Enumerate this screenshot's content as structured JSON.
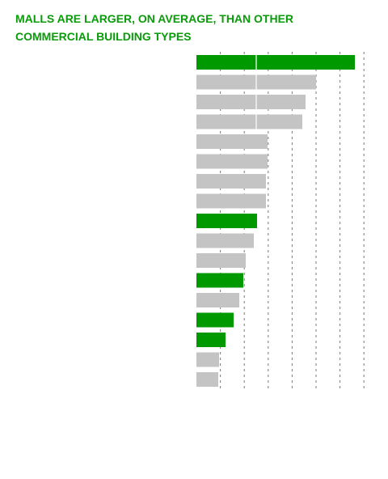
{
  "title": "MALLS ARE LARGER, ON AVERAGE, THAN OTHER COMMERCIAL BUILDING TYPES",
  "colors": {
    "highlight": "#009900",
    "base": "#c4c4c4",
    "title": "#0a9b0a",
    "grid": "#7a7a7a"
  },
  "chart_data": {
    "type": "bar",
    "orientation": "horizontal",
    "title": "MALLS ARE LARGER, ON AVERAGE, THAN OTHER COMMERCIAL BUILDING TYPES",
    "xlabel": "",
    "ylabel": "",
    "xlim": [
      0,
      210
    ],
    "grid": true,
    "legend": "none",
    "categories": [
      "",
      "",
      "",
      "",
      "",
      "",
      "",
      "",
      "",
      "",
      "",
      "",
      "",
      "",
      "",
      "",
      ""
    ],
    "values": [
      196,
      148,
      135,
      131,
      88,
      88,
      86,
      86,
      75,
      71,
      61,
      58,
      53,
      46,
      36,
      28,
      27
    ],
    "highlighted": [
      true,
      false,
      false,
      false,
      false,
      false,
      false,
      false,
      true,
      false,
      false,
      true,
      false,
      true,
      true,
      false,
      false
    ]
  }
}
